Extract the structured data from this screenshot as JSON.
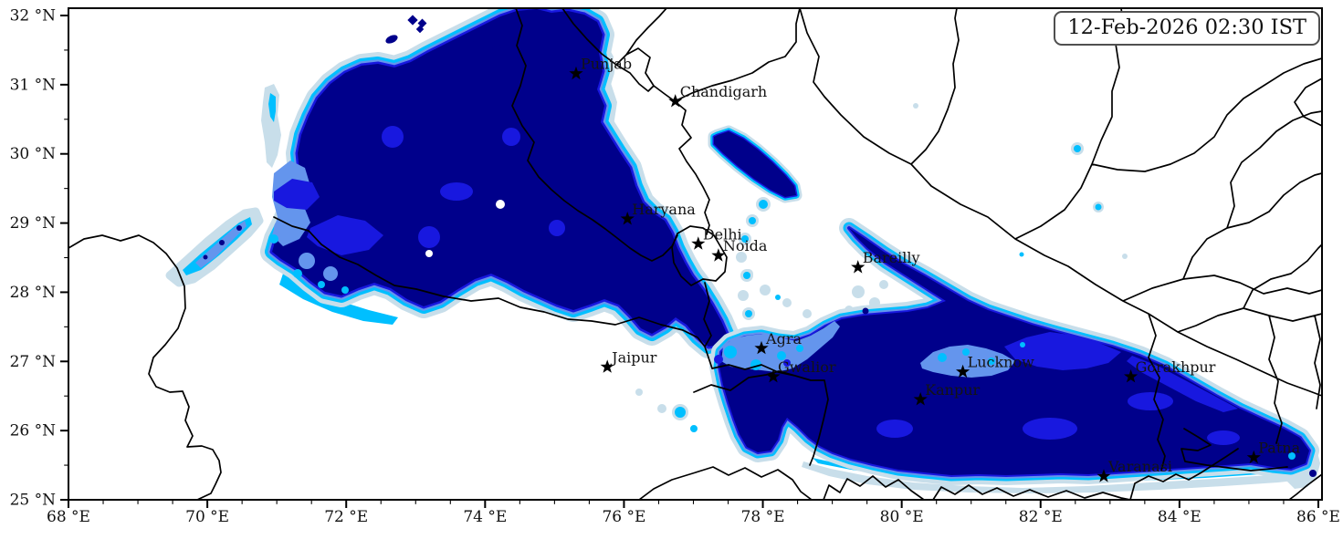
{
  "title": {
    "timestamp": "12-Feb-2026 02:30 IST"
  },
  "axes": {
    "x": {
      "name": "longitude",
      "major_ticks": [
        {
          "value": 68,
          "label": "68 °E"
        },
        {
          "value": 70,
          "label": "70 °E"
        },
        {
          "value": 72,
          "label": "72 °E"
        },
        {
          "value": 74,
          "label": "74 °E"
        },
        {
          "value": 76,
          "label": "76 °E"
        },
        {
          "value": 78,
          "label": "78 °E"
        },
        {
          "value": 80,
          "label": "80 °E"
        },
        {
          "value": 82,
          "label": "82 °E"
        },
        {
          "value": 84,
          "label": "84 °E"
        },
        {
          "value": 86,
          "label": "86 °E"
        }
      ],
      "minor_step": 0.5,
      "range": [
        68,
        86.05
      ]
    },
    "y": {
      "name": "latitude",
      "major_ticks": [
        {
          "value": 25,
          "label": "25 °N"
        },
        {
          "value": 26,
          "label": "26 °N"
        },
        {
          "value": 27,
          "label": "27 °N"
        },
        {
          "value": 28,
          "label": "28 °N"
        },
        {
          "value": 29,
          "label": "29 °N"
        },
        {
          "value": 30,
          "label": "30 °N"
        },
        {
          "value": 31,
          "label": "31 °N"
        },
        {
          "value": 32,
          "label": "32 °N"
        }
      ],
      "minor_step": 0.5,
      "range": [
        24.99,
        32.1
      ]
    }
  },
  "cities": [
    {
      "name": "Punjab",
      "lon": 75.31,
      "lat": 31.16
    },
    {
      "name": "Chandigarh",
      "lon": 76.74,
      "lat": 30.76
    },
    {
      "name": "Haryana",
      "lon": 76.05,
      "lat": 29.06
    },
    {
      "name": "Delhi",
      "lon": 77.07,
      "lat": 28.7
    },
    {
      "name": "Noida",
      "lon": 77.36,
      "lat": 28.53
    },
    {
      "name": "Bareilly",
      "lon": 79.37,
      "lat": 28.36
    },
    {
      "name": "Jaipur",
      "lon": 75.76,
      "lat": 26.92
    },
    {
      "name": "Agra",
      "lon": 77.98,
      "lat": 27.19
    },
    {
      "name": "Gwalior",
      "lon": 78.15,
      "lat": 26.78
    },
    {
      "name": "Lucknow",
      "lon": 80.88,
      "lat": 26.85
    },
    {
      "name": "Kanpur",
      "lon": 80.27,
      "lat": 26.45
    },
    {
      "name": "Gorakhpur",
      "lon": 83.3,
      "lat": 26.78
    },
    {
      "name": "Varanasi",
      "lon": 82.91,
      "lat": 25.34
    },
    {
      "name": "Patna",
      "lon": 85.07,
      "lat": 25.61
    }
  ],
  "colors": {
    "shading_levels": [
      "#C8DEEA",
      "#00BFFF",
      "#6495ED",
      "#1818DF",
      "#00008B"
    ],
    "clear": "#FFFFFF",
    "boundary": "#000000",
    "frame": "#000000",
    "city_marker": "#000000",
    "label_text": "#141414",
    "title_border": "#4F4F4F"
  }
}
